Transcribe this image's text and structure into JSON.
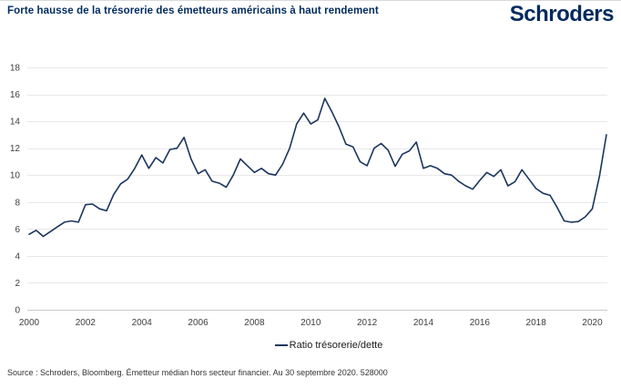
{
  "header": {
    "title": "Forte hausse de la trésorerie des émetteurs américains à haut rendement",
    "logo": "Schroders"
  },
  "legend": {
    "label": "Ratio trésorerie/dette"
  },
  "source": "Source : Schroders, Bloomberg. Émetteur médian hors secteur financier. Au 30 septembre 2020. 528000",
  "colors": {
    "brand_navy": "#002a5e",
    "line": "#1b365d",
    "grid": "#e8e8e8",
    "axis": "#c9c9c9",
    "tick_text": "#404040"
  },
  "chart_data": {
    "type": "line",
    "title": "Forte hausse de la trésorerie des émetteurs américains à haut rendement",
    "series_name": "Ratio trésorerie/dette",
    "frequency": "quarterly",
    "x_start": "2000-Q1",
    "x_end": "2020-Q3",
    "x_tick_labels": [
      "2000",
      "2002",
      "2004",
      "2006",
      "2008",
      "2010",
      "2012",
      "2014",
      "2016",
      "2018",
      "2020"
    ],
    "y_ticks": [
      0,
      2,
      4,
      6,
      8,
      10,
      12,
      14,
      16,
      18
    ],
    "ylim": [
      0,
      18
    ],
    "xlabel": "",
    "ylabel": "",
    "grid": "horizontal",
    "legend_position": "bottom",
    "values": [
      5.6,
      5.9,
      5.45,
      5.8,
      6.15,
      6.5,
      6.6,
      6.5,
      7.8,
      7.85,
      7.5,
      7.35,
      8.55,
      9.35,
      9.7,
      10.5,
      11.5,
      10.5,
      11.3,
      10.9,
      11.9,
      12.0,
      12.8,
      11.2,
      10.1,
      10.4,
      9.55,
      9.4,
      9.1,
      10.0,
      11.2,
      10.7,
      10.2,
      10.5,
      10.1,
      10.0,
      10.8,
      12.0,
      13.8,
      14.6,
      13.8,
      14.1,
      15.7,
      14.7,
      13.6,
      12.3,
      12.1,
      11.0,
      10.7,
      12.0,
      12.35,
      11.85,
      10.65,
      11.55,
      11.8,
      12.45,
      10.5,
      10.7,
      10.5,
      10.1,
      10.0,
      9.55,
      9.2,
      8.95,
      9.6,
      10.2,
      9.9,
      10.4,
      9.2,
      9.5,
      10.4,
      9.7,
      9.0,
      8.65,
      8.5,
      7.6,
      6.6,
      6.5,
      6.55,
      6.9,
      7.5,
      9.9,
      13.0
    ]
  }
}
